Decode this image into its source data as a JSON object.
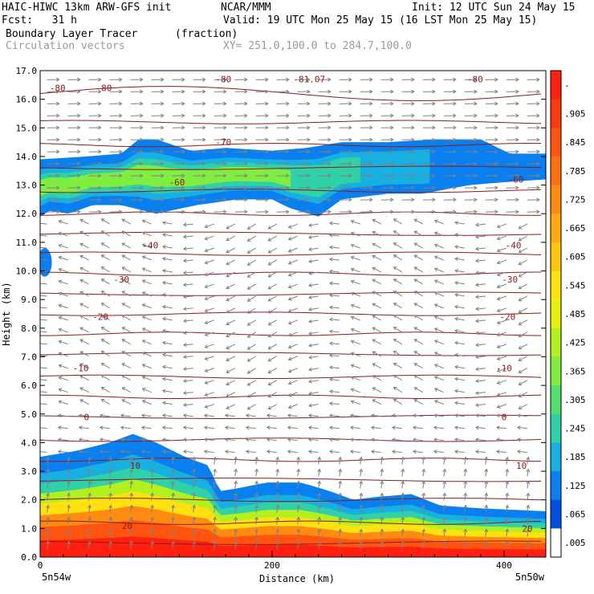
{
  "header": {
    "model_line": "HAIC-HIWC 13km ARW-GFS init",
    "org": "NCAR/MMM",
    "init": "Init: 12 UTC Sun 24 May 15",
    "fcst": "Fcst:   31 h",
    "valid": "Valid: 19 UTC Mon 25 May 15 (16 LST Mon 25 May 15)",
    "field": "Boundary Layer Tracer",
    "units": "(fraction)",
    "vectors": "Circulation vectors",
    "xy": "XY= 251.0,100.0 to 284.7,100.0"
  },
  "chart_data": {
    "type": "heatmap",
    "title": "Boundary Layer Tracer (fraction)",
    "xlabel": "Distance (km)",
    "ylabel": "Height (km)",
    "xlim": [
      0,
      436
    ],
    "ylim": [
      0,
      17
    ],
    "x_ticks": [
      0,
      200,
      400
    ],
    "y_ticks": [
      "0.0",
      "1.0",
      "2.0",
      "3.0",
      "4.0",
      "5.0",
      "6.0",
      "7.0",
      "8.0",
      "9.0",
      "10.0",
      "11.0",
      "12.0",
      "13.0",
      "14.0",
      "15.0",
      "16.0",
      "17.0"
    ],
    "x_end_labels": [
      "5n54w",
      "5n50w"
    ],
    "colorbar": {
      "labels": [
        "-",
        ".905",
        ".845",
        ".785",
        ".725",
        ".665",
        ".605",
        ".545",
        ".485",
        ".425",
        ".365",
        ".305",
        ".245",
        ".185",
        ".125",
        ".065",
        ".005"
      ],
      "colors": [
        "#ff2010",
        "#ff3a10",
        "#ff5510",
        "#ff7010",
        "#ff8c10",
        "#ffa810",
        "#ffc410",
        "#ffe010",
        "#e8f010",
        "#b4f020",
        "#80ee40",
        "#50e070",
        "#30d0a8",
        "#18b0e0",
        "#0a80f0",
        "#0050e0",
        "#ffffff"
      ]
    },
    "contour_labels": [
      {
        "x": 15,
        "y": 16.4,
        "text": "-80"
      },
      {
        "x": 55,
        "y": 16.4,
        "text": "-80"
      },
      {
        "x": 158,
        "y": 16.7,
        "text": "-80"
      },
      {
        "x": 232,
        "y": 16.7,
        "text": "-81.07"
      },
      {
        "x": 375,
        "y": 16.7,
        "text": "-80"
      },
      {
        "x": 158,
        "y": 14.5,
        "text": "-70"
      },
      {
        "x": 118,
        "y": 13.1,
        "text": "-60"
      },
      {
        "x": 410,
        "y": 13.2,
        "text": "-60"
      },
      {
        "x": 95,
        "y": 10.9,
        "text": "-40"
      },
      {
        "x": 408,
        "y": 10.9,
        "text": "-40"
      },
      {
        "x": 70,
        "y": 9.7,
        "text": "-30"
      },
      {
        "x": 405,
        "y": 9.7,
        "text": "-30"
      },
      {
        "x": 52,
        "y": 8.4,
        "text": "-20"
      },
      {
        "x": 403,
        "y": 8.4,
        "text": "-20"
      },
      {
        "x": 35,
        "y": 6.6,
        "text": "-10"
      },
      {
        "x": 400,
        "y": 6.6,
        "text": "-10"
      },
      {
        "x": 40,
        "y": 4.9,
        "text": "0"
      },
      {
        "x": 400,
        "y": 4.9,
        "text": "0"
      },
      {
        "x": 82,
        "y": 3.2,
        "text": "10"
      },
      {
        "x": 415,
        "y": 3.2,
        "text": "10"
      },
      {
        "x": 75,
        "y": 1.1,
        "text": "20"
      },
      {
        "x": 420,
        "y": 1.0,
        "text": "20"
      }
    ],
    "isotherm_heights": [
      16.2,
      15.2,
      14.4,
      13.6,
      12.8,
      12.0,
      11.3,
      10.6,
      9.9,
      9.2,
      8.5,
      7.8,
      7.1,
      6.3,
      5.6,
      4.9,
      4.1,
      3.4,
      2.7,
      2.0,
      1.2,
      0.5
    ],
    "tracer": {
      "bl_top": [
        [
          0,
          3.5
        ],
        [
          30,
          3.7
        ],
        [
          60,
          4.0
        ],
        [
          80,
          4.3
        ],
        [
          100,
          4.0
        ],
        [
          125,
          3.5
        ],
        [
          145,
          3.2
        ],
        [
          155,
          2.3
        ],
        [
          170,
          2.4
        ],
        [
          195,
          2.6
        ],
        [
          225,
          2.6
        ],
        [
          250,
          2.3
        ],
        [
          270,
          2.0
        ],
        [
          290,
          2.1
        ],
        [
          320,
          2.2
        ],
        [
          345,
          1.8
        ],
        [
          380,
          1.7
        ],
        [
          436,
          1.6
        ]
      ],
      "bl_fraction": [
        [
          0.95,
          0.25
        ],
        [
          0.9,
          0.5
        ],
        [
          0.8,
          0.9
        ],
        [
          0.65,
          1.25
        ],
        [
          0.5,
          1.6
        ],
        [
          0.35,
          1.9
        ],
        [
          0.2,
          2.2
        ],
        [
          0.1,
          2.5
        ],
        [
          0.04,
          3.0
        ]
      ],
      "upper_base": [
        [
          0,
          11.9
        ],
        [
          8,
          12.1
        ],
        [
          25,
          12.0
        ],
        [
          45,
          12.3
        ],
        [
          70,
          12.3
        ],
        [
          100,
          12.0
        ],
        [
          135,
          12.3
        ],
        [
          170,
          12.5
        ],
        [
          200,
          12.5
        ],
        [
          215,
          12.2
        ],
        [
          240,
          11.9
        ],
        [
          260,
          12.5
        ],
        [
          300,
          12.7
        ],
        [
          330,
          12.7
        ],
        [
          370,
          13.0
        ],
        [
          400,
          13.1
        ],
        [
          436,
          13.2
        ]
      ],
      "upper_top": [
        [
          0,
          13.9
        ],
        [
          40,
          14.0
        ],
        [
          70,
          14.1
        ],
        [
          85,
          14.6
        ],
        [
          100,
          14.6
        ],
        [
          130,
          14.2
        ],
        [
          160,
          14.3
        ],
        [
          200,
          14.2
        ],
        [
          230,
          14.3
        ],
        [
          260,
          14.5
        ],
        [
          300,
          14.5
        ],
        [
          340,
          14.6
        ],
        [
          380,
          14.6
        ],
        [
          405,
          14.1
        ],
        [
          436,
          14.1
        ]
      ],
      "upper_fraction": [
        0.06,
        0.12,
        0.2,
        0.3
      ],
      "isolated_blob": {
        "x": [
          0,
          8
        ],
        "y": [
          9.8,
          10.8
        ]
      }
    }
  }
}
